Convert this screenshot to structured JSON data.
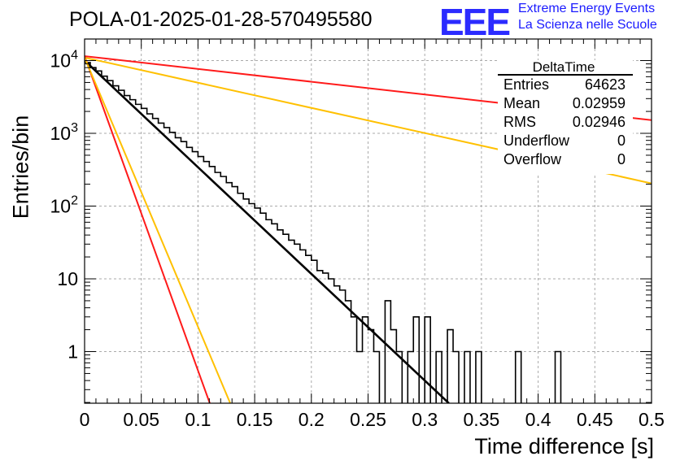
{
  "header": {
    "title": "POLA-01-2025-01-28-570495580",
    "logo_text": "EEE",
    "logo_line1": "Extreme Energy Events",
    "logo_line2": "La Scienza nelle Scuole"
  },
  "stats_box": {
    "name": "DeltaTime",
    "rows": [
      {
        "label": "Entries",
        "value": "64623"
      },
      {
        "label": "Mean",
        "value": "0.02959"
      },
      {
        "label": "RMS",
        "value": "0.02946"
      },
      {
        "label": "Underflow",
        "value": "0"
      },
      {
        "label": "Overflow",
        "value": "0"
      }
    ]
  },
  "chart_data": {
    "type": "histogram",
    "title": "POLA-01-2025-01-28-570495580",
    "xlabel": "Time difference [s]",
    "ylabel": "Entries/bin",
    "xlim": [
      0,
      0.5
    ],
    "ylim": [
      0.2,
      20000
    ],
    "yscale": "log",
    "grid": true,
    "x_ticks": [
      "0",
      "0.05",
      "0.1",
      "0.15",
      "0.2",
      "0.25",
      "0.3",
      "0.35",
      "0.4",
      "0.45",
      "0.5"
    ],
    "y_ticks": [
      {
        "base": "1",
        "exp": ""
      },
      {
        "base": "10",
        "exp": ""
      },
      {
        "base": "10",
        "exp": "2"
      },
      {
        "base": "10",
        "exp": "3"
      },
      {
        "base": "10",
        "exp": "4"
      }
    ],
    "bin_width": 0.005,
    "histogram_values": [
      9400,
      8000,
      7200,
      6100,
      5300,
      4500,
      3900,
      3300,
      2900,
      2500,
      2200,
      1850,
      1600,
      1380,
      1200,
      1030,
      870,
      770,
      640,
      560,
      480,
      410,
      350,
      290,
      255,
      210,
      185,
      150,
      125,
      108,
      94,
      80,
      65,
      57,
      47,
      41,
      34,
      30,
      25,
      21,
      18,
      13,
      12,
      10,
      8,
      7,
      5,
      3,
      1,
      3,
      2,
      1,
      0,
      5,
      2,
      1,
      0,
      1,
      3,
      0,
      3,
      0,
      1,
      0,
      2,
      1,
      0,
      1,
      0,
      1,
      0,
      0,
      0,
      0,
      0,
      0,
      1,
      0,
      0,
      0,
      0,
      0,
      0,
      1,
      0,
      0,
      0,
      0,
      0,
      0,
      0,
      0,
      0,
      0,
      0,
      0,
      0,
      0,
      0,
      0
    ],
    "series": [
      {
        "name": "",
        "color": "#000000",
        "y0": 10000,
        "y_at_0_3": 0.4
      },
      {
        "name": "",
        "color": "#ff1a1a",
        "y0": 11500,
        "y_at_0_5": 1520
      },
      {
        "name": "",
        "color": "#ffc000",
        "y0": 11000,
        "y_at_0_5": 205
      },
      {
        "name": "",
        "color": "#ff1a1a",
        "y0": 11500,
        "y_at_0_1": 0.55
      },
      {
        "name": "",
        "color": "#ffc000",
        "y0": 11000,
        "y_at_0_1": 2.2
      }
    ]
  }
}
